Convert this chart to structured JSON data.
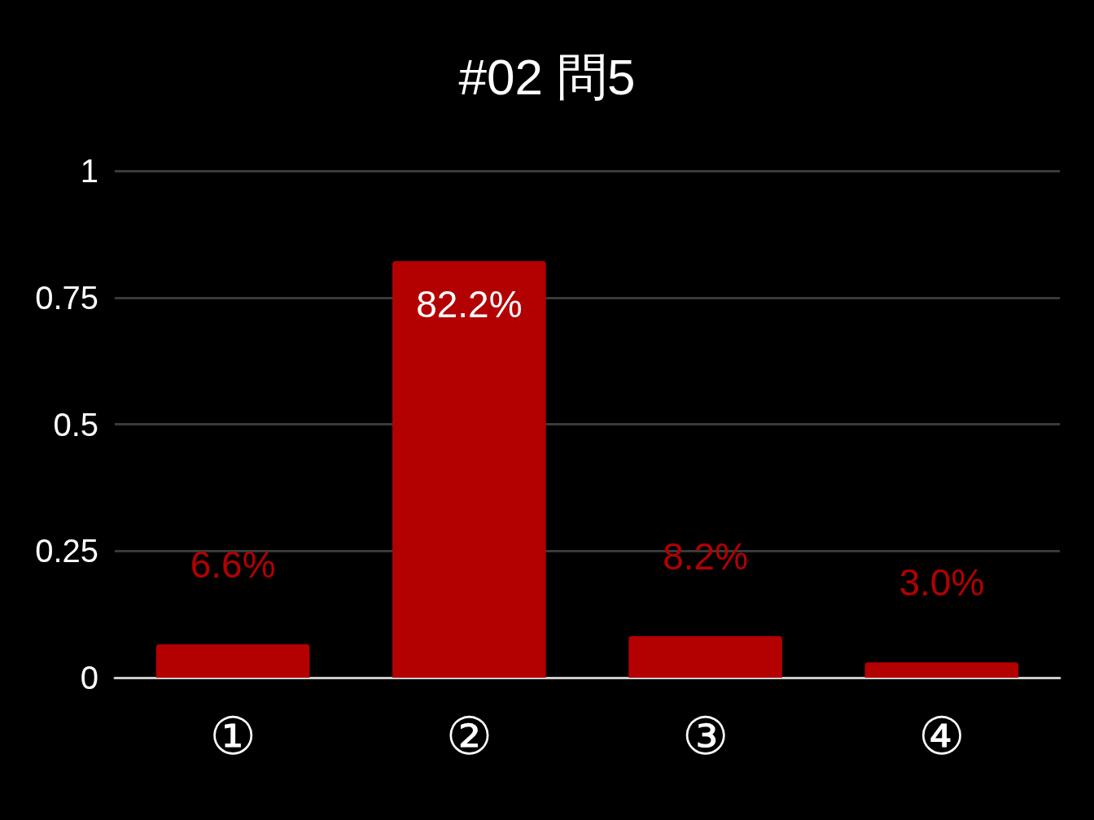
{
  "chart_data": {
    "type": "bar",
    "title": "#02 問5",
    "categories": [
      "①",
      "②",
      "③",
      "④"
    ],
    "values": [
      0.066,
      0.822,
      0.082,
      0.03
    ],
    "value_labels": [
      "6.6%",
      "82.2%",
      "8.2%",
      "3.0%"
    ],
    "color": "#b30000",
    "ylim": [
      0,
      1
    ],
    "yticks": [
      0,
      0.25,
      0.5,
      0.75,
      1
    ],
    "grid": "y"
  }
}
